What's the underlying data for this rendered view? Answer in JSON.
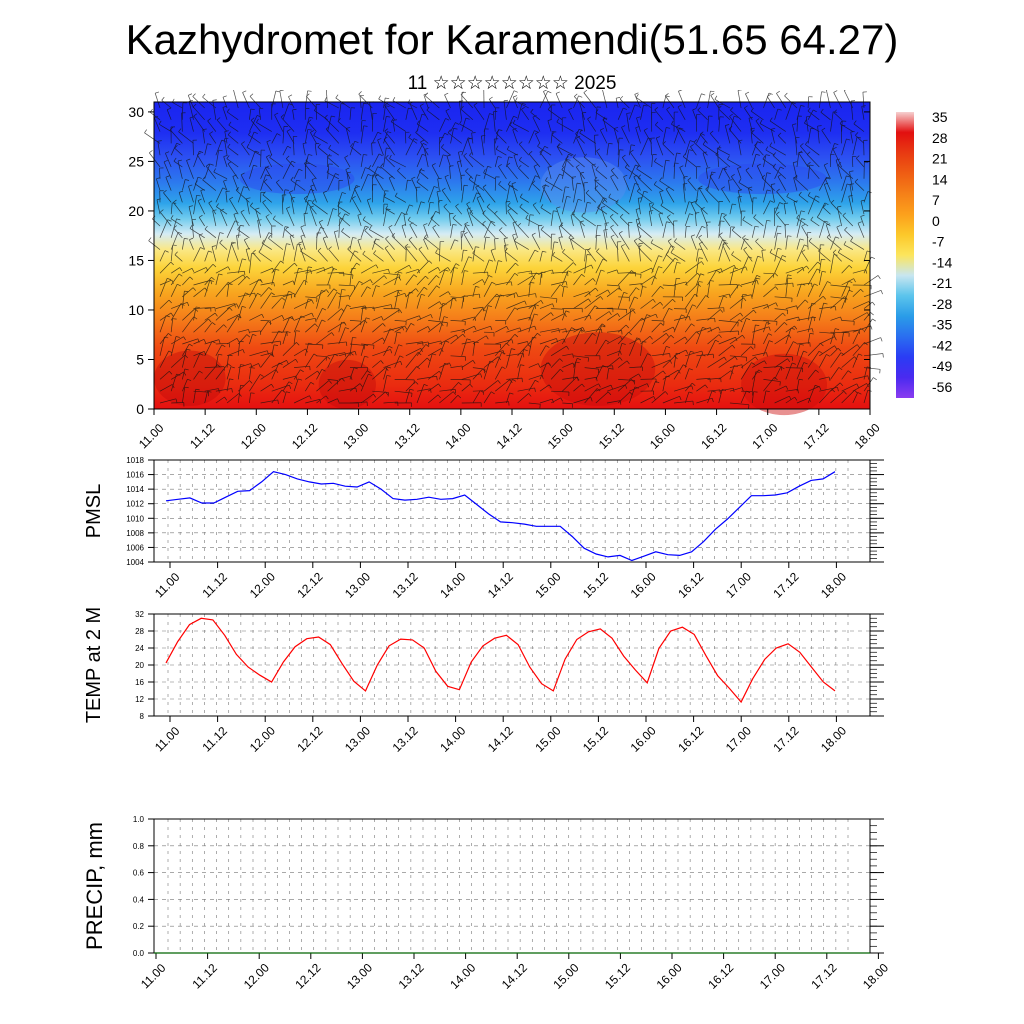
{
  "header": {
    "title": "Kazhydromet for Karamendi(51.65 64.27)",
    "subtitle": "11 ☆☆☆☆☆☆☆☆ 2025"
  },
  "chart_data": [
    {
      "type": "heatmap",
      "name": "temperature-height cross-section with wind barbs",
      "x_tick_labels": [
        "11.00",
        "11.12",
        "12.00",
        "12.12",
        "13.00",
        "13.12",
        "14.00",
        "14.12",
        "15.00",
        "15.12",
        "16.00",
        "16.12",
        "17.00",
        "17.12",
        "18.00"
      ],
      "y_ticks": [
        0,
        5,
        10,
        15,
        20,
        25,
        30
      ],
      "ylim": [
        0,
        31
      ],
      "colorbar_labels": [
        "35",
        "28",
        "21",
        "14",
        "7",
        "0",
        "-7",
        "-14",
        "-21",
        "-28",
        "-35",
        "-42",
        "-49",
        "-56"
      ],
      "colorbar_stops": [
        "#f6d0d0",
        "#e21010",
        "#e83a12",
        "#ef5d13",
        "#f58018",
        "#fca01c",
        "#fcc82a",
        "#fce55c",
        "#c8e6f0",
        "#5bc4ec",
        "#2a9ce8",
        "#2a6ef0",
        "#2a3cf4",
        "#4a2af0",
        "#8a3cf0"
      ],
      "grid": false
    },
    {
      "type": "line",
      "ylabel": "PMSL",
      "ylim": [
        1004,
        1018
      ],
      "y_ticks": [
        1004,
        1006,
        1008,
        1010,
        1012,
        1014,
        1016,
        1018
      ],
      "x_tick_labels": [
        "11.00",
        "11.12",
        "12.00",
        "12.12",
        "13.00",
        "13.12",
        "14.00",
        "14.12",
        "15.00",
        "15.12",
        "16.00",
        "16.12",
        "17.00",
        "17.12",
        "18.00"
      ],
      "color": "#0000ff",
      "values": [
        1012.4,
        1012.6,
        1012.8,
        1012.1,
        1012.1,
        1012.9,
        1013.7,
        1013.8,
        1015.0,
        1016.4,
        1016.0,
        1015.4,
        1015.0,
        1014.7,
        1014.8,
        1014.4,
        1014.3,
        1015.0,
        1014.0,
        1012.7,
        1012.5,
        1012.6,
        1012.9,
        1012.6,
        1012.7,
        1013.2,
        1011.9,
        1010.6,
        1009.5,
        1009.4,
        1009.2,
        1008.9,
        1008.9,
        1008.9,
        1007.5,
        1005.9,
        1005.1,
        1004.7,
        1004.9,
        1004.2,
        1004.8,
        1005.4,
        1005.0,
        1004.9,
        1005.4,
        1006.8,
        1008.5,
        1009.9,
        1011.5,
        1013.1,
        1013.1,
        1013.2,
        1013.5,
        1014.4,
        1015.2,
        1015.4,
        1016.4
      ],
      "grid": true
    },
    {
      "type": "line",
      "ylabel": "TEMP at 2 M",
      "ylim": [
        8,
        32
      ],
      "y_ticks": [
        8,
        12,
        16,
        20,
        24,
        28,
        32
      ],
      "x_tick_labels": [
        "11.00",
        "11.12",
        "12.00",
        "12.12",
        "13.00",
        "13.12",
        "14.00",
        "14.12",
        "15.00",
        "15.12",
        "16.00",
        "16.12",
        "17.00",
        "17.12",
        "18.00"
      ],
      "color": "#ff0000",
      "values": [
        20.5,
        25.5,
        29.5,
        31.0,
        30.6,
        27.0,
        22.5,
        19.5,
        17.6,
        16.0,
        20.7,
        24.3,
        26.2,
        26.6,
        24.8,
        20.3,
        16.2,
        13.9,
        20.0,
        24.5,
        26.1,
        25.9,
        24.0,
        18.5,
        15.0,
        14.2,
        20.7,
        24.5,
        26.3,
        27.0,
        24.8,
        19.5,
        15.6,
        13.9,
        21.4,
        26.0,
        27.8,
        28.5,
        26.3,
        22.1,
        18.8,
        15.8,
        23.9,
        28.0,
        28.9,
        27.2,
        22.2,
        17.5,
        14.5,
        11.3,
        16.8,
        21.3,
        24.0,
        25.0,
        23.0,
        19.5,
        16.0,
        13.9
      ],
      "grid": true
    },
    {
      "type": "line",
      "ylabel": "PRECIP, mm",
      "ylim": [
        0,
        1.0
      ],
      "y_ticks": [
        "0.0",
        "0.2",
        "0.4",
        "0.6",
        "0.8",
        "1.0"
      ],
      "x_tick_labels": [
        "11.00",
        "11.12",
        "12.00",
        "12.12",
        "13.00",
        "13.12",
        "14.00",
        "14.12",
        "15.00",
        "15.12",
        "16.00",
        "16.12",
        "17.00",
        "17.12",
        "18.00"
      ],
      "color": "#006400",
      "values": [
        0,
        0,
        0,
        0,
        0,
        0,
        0,
        0,
        0,
        0,
        0,
        0,
        0,
        0,
        0,
        0,
        0,
        0,
        0,
        0,
        0,
        0,
        0,
        0,
        0,
        0,
        0,
        0,
        0,
        0,
        0,
        0,
        0,
        0,
        0,
        0,
        0,
        0,
        0,
        0,
        0,
        0,
        0,
        0,
        0,
        0,
        0,
        0,
        0,
        0,
        0,
        0,
        0,
        0,
        0,
        0,
        0
      ],
      "grid": true
    }
  ]
}
